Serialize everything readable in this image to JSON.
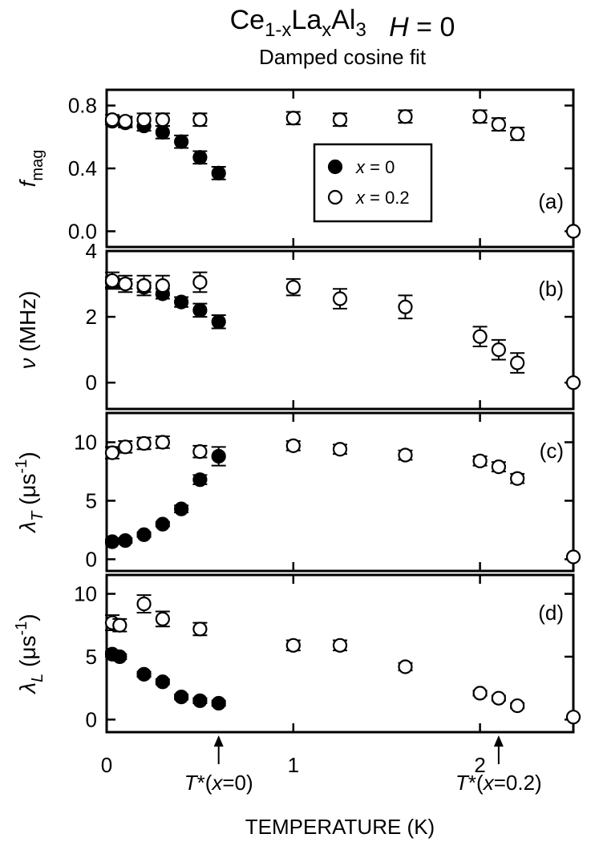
{
  "chart_data": {
    "type": "scatter",
    "title": {
      "parts": [
        {
          "text": "Ce",
          "style": "normal"
        },
        {
          "text": "1-x",
          "style": "sub"
        },
        {
          "text": "La",
          "style": "normal"
        },
        {
          "text": "x",
          "style": "sub"
        },
        {
          "text": "Al",
          "style": "normal"
        },
        {
          "text": "3",
          "style": "sub"
        },
        {
          "text": "H",
          "style": "italic"
        },
        {
          "text": " = 0",
          "style": "normal"
        }
      ]
    },
    "subtitle": "Damped cosine fit",
    "xlabel": "TEMPERATURE  (K)",
    "xlim": [
      0,
      2.5
    ],
    "x_ticks": [
      {
        "value": 0,
        "label": "0"
      },
      {
        "value": 1,
        "label": "1"
      },
      {
        "value": 2,
        "label": "2"
      }
    ],
    "legend": {
      "placement": "inside panel (a), center",
      "entries": [
        {
          "series": "x=0",
          "marker": "filled-circle",
          "prefix": "x",
          "suffix": " = 0"
        },
        {
          "series": "x=0.2",
          "marker": "open-circle",
          "prefix": "x",
          "suffix": " = 0.2"
        }
      ]
    },
    "annotations": [
      {
        "x": 0.6,
        "text_italic": "T",
        "text": "*(",
        "text_italic2": "x",
        "text2": "=0)"
      },
      {
        "x": 2.1,
        "text_italic": "T",
        "text": "*(",
        "text_italic2": "x",
        "text2": "=0.2)"
      }
    ],
    "panels": [
      {
        "label": "(a)",
        "ylabel": {
          "main": "f",
          "main_style": "italic",
          "sub": "mag",
          "rest": ""
        },
        "ylim": [
          -0.1,
          0.9
        ],
        "y_ticks": [
          {
            "value": 0.0,
            "label": "0.0"
          },
          {
            "value": 0.4,
            "label": "0.4"
          },
          {
            "value": 0.8,
            "label": "0.8"
          }
        ],
        "series": [
          {
            "name": "x=0",
            "filled": true,
            "x": [
              0.03,
              0.1,
              0.2,
              0.3,
              0.4,
              0.5,
              0.6
            ],
            "y": [
              0.7,
              0.69,
              0.67,
              0.63,
              0.57,
              0.47,
              0.37
            ],
            "err": [
              0.02,
              0.03,
              0.03,
              0.04,
              0.04,
              0.04,
              0.04
            ]
          },
          {
            "name": "x=0.2",
            "filled": false,
            "x": [
              0.03,
              0.1,
              0.2,
              0.3,
              0.5,
              1.0,
              1.25,
              1.6,
              2.0,
              2.1,
              2.2,
              2.5
            ],
            "y": [
              0.71,
              0.7,
              0.71,
              0.71,
              0.71,
              0.72,
              0.71,
              0.73,
              0.73,
              0.68,
              0.62,
              0.0
            ],
            "err": [
              0.03,
              0.03,
              0.04,
              0.04,
              0.04,
              0.04,
              0.04,
              0.04,
              0.04,
              0.04,
              0.04,
              0.0
            ]
          }
        ]
      },
      {
        "label": "(b)",
        "ylabel": {
          "main": "ν",
          "main_style": "italic",
          "sub": "",
          "rest": "  (MHz)"
        },
        "ylim": [
          -0.8,
          4.0
        ],
        "y_ticks": [
          {
            "value": 0,
            "label": "0"
          },
          {
            "value": 2,
            "label": "2"
          },
          {
            "value": 4,
            "label": "4"
          }
        ],
        "series": [
          {
            "name": "x=0",
            "filled": true,
            "x": [
              0.03,
              0.1,
              0.2,
              0.3,
              0.4,
              0.5,
              0.6
            ],
            "y": [
              3.05,
              3.0,
              2.9,
              2.7,
              2.45,
              2.2,
              1.85
            ],
            "err": [
              0.15,
              0.15,
              0.15,
              0.15,
              0.15,
              0.2,
              0.2
            ]
          },
          {
            "name": "x=0.2",
            "filled": false,
            "x": [
              0.03,
              0.1,
              0.2,
              0.3,
              0.5,
              1.0,
              1.25,
              1.6,
              2.0,
              2.1,
              2.2,
              2.5
            ],
            "y": [
              3.1,
              3.0,
              2.95,
              2.95,
              3.05,
              2.9,
              2.55,
              2.3,
              1.4,
              1.0,
              0.6,
              0.0
            ],
            "err": [
              0.25,
              0.25,
              0.3,
              0.3,
              0.3,
              0.25,
              0.3,
              0.35,
              0.3,
              0.3,
              0.3,
              0.0
            ]
          }
        ]
      },
      {
        "label": "(c)",
        "ylabel": {
          "main": "λ",
          "main_style": "italic",
          "sub": "T",
          "rest": "  (μs",
          "sup": "-1",
          "close": ")"
        },
        "ylim": [
          -1.0,
          12.5
        ],
        "y_ticks": [
          {
            "value": 0,
            "label": "0"
          },
          {
            "value": 5,
            "label": "5"
          },
          {
            "value": 10,
            "label": "10"
          }
        ],
        "series": [
          {
            "name": "x=0",
            "filled": true,
            "x": [
              0.03,
              0.1,
              0.2,
              0.3,
              0.4,
              0.5,
              0.6
            ],
            "y": [
              1.5,
              1.6,
              2.1,
              3.0,
              4.3,
              6.8,
              8.8
            ],
            "err": [
              0.2,
              0.2,
              0.2,
              0.2,
              0.3,
              0.4,
              0.8
            ]
          },
          {
            "name": "x=0.2",
            "filled": false,
            "x": [
              0.03,
              0.1,
              0.2,
              0.3,
              0.5,
              1.0,
              1.25,
              1.6,
              2.0,
              2.1,
              2.2,
              2.5
            ],
            "y": [
              9.1,
              9.6,
              9.9,
              10.0,
              9.2,
              9.7,
              9.4,
              8.9,
              8.4,
              7.9,
              6.9,
              0.2
            ],
            "err": [
              0.5,
              0.5,
              0.5,
              0.5,
              0.5,
              0.4,
              0.4,
              0.4,
              0.4,
              0.4,
              0.4,
              0.0
            ]
          }
        ]
      },
      {
        "label": "(d)",
        "ylabel": {
          "main": "λ",
          "main_style": "italic",
          "sub": "L",
          "rest": "  (μs",
          "sup": "-1",
          "close": ")"
        },
        "ylim": [
          -1.0,
          11.5
        ],
        "y_ticks": [
          {
            "value": 0,
            "label": "0"
          },
          {
            "value": 5,
            "label": "5"
          },
          {
            "value": 10,
            "label": "10"
          }
        ],
        "series": [
          {
            "name": "x=0",
            "filled": true,
            "x": [
              0.03,
              0.07,
              0.2,
              0.3,
              0.4,
              0.5,
              0.6
            ],
            "y": [
              5.2,
              5.0,
              3.6,
              3.0,
              1.8,
              1.5,
              1.3
            ],
            "err": [
              0.2,
              0.2,
              0.2,
              0.2,
              0.2,
              0.2,
              0.2
            ]
          },
          {
            "name": "x=0.2",
            "filled": false,
            "x": [
              0.03,
              0.07,
              0.2,
              0.3,
              0.5,
              1.0,
              1.25,
              1.6,
              2.0,
              2.1,
              2.2,
              2.5
            ],
            "y": [
              7.7,
              7.5,
              9.2,
              8.0,
              7.2,
              5.9,
              5.9,
              4.2,
              2.1,
              1.7,
              1.1,
              0.2
            ],
            "err": [
              0.6,
              0.5,
              0.7,
              0.6,
              0.5,
              0.4,
              0.4,
              0.3,
              0.2,
              0.2,
              0.2,
              0.0
            ]
          }
        ]
      }
    ]
  }
}
